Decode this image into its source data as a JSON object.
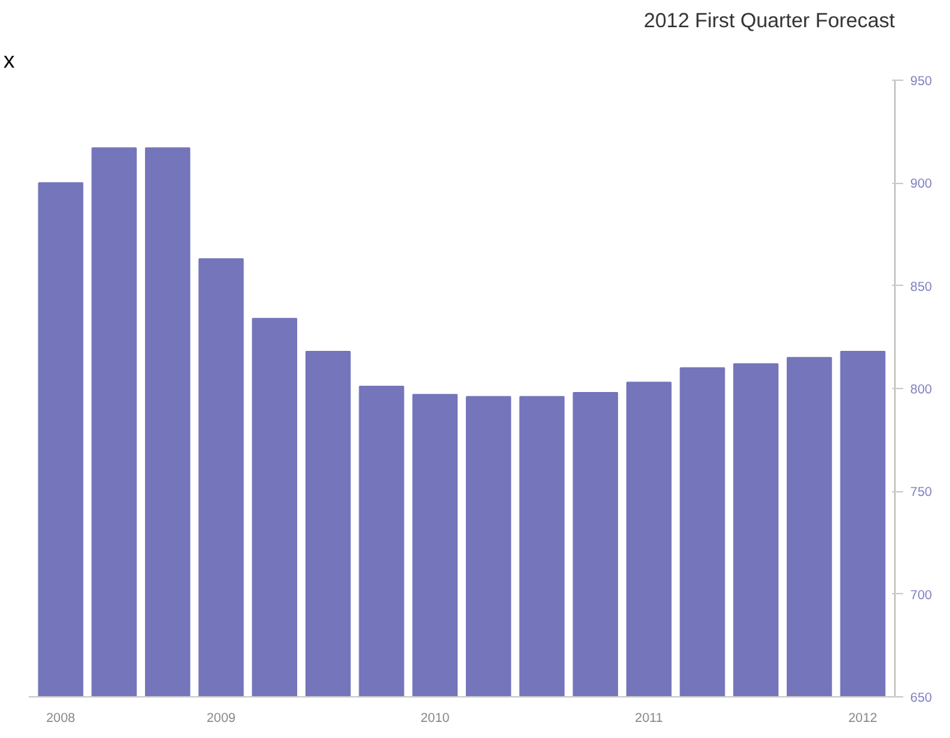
{
  "chart_data": {
    "type": "bar",
    "title": "2012 First Quarter Forecast",
    "annotations": [
      "x"
    ],
    "categories": [
      "2008",
      null,
      null,
      "2009",
      null,
      null,
      null,
      "2010",
      null,
      null,
      null,
      "2011",
      null,
      null,
      null,
      "2012"
    ],
    "values": [
      900,
      917,
      917,
      863,
      834,
      818,
      801,
      797,
      796,
      796,
      798,
      803,
      810,
      812,
      815,
      818
    ],
    "color": "#7475bb",
    "ylim": [
      650,
      950
    ],
    "yticks": [
      650,
      700,
      750,
      800,
      850,
      900,
      950
    ],
    "grid": false
  }
}
